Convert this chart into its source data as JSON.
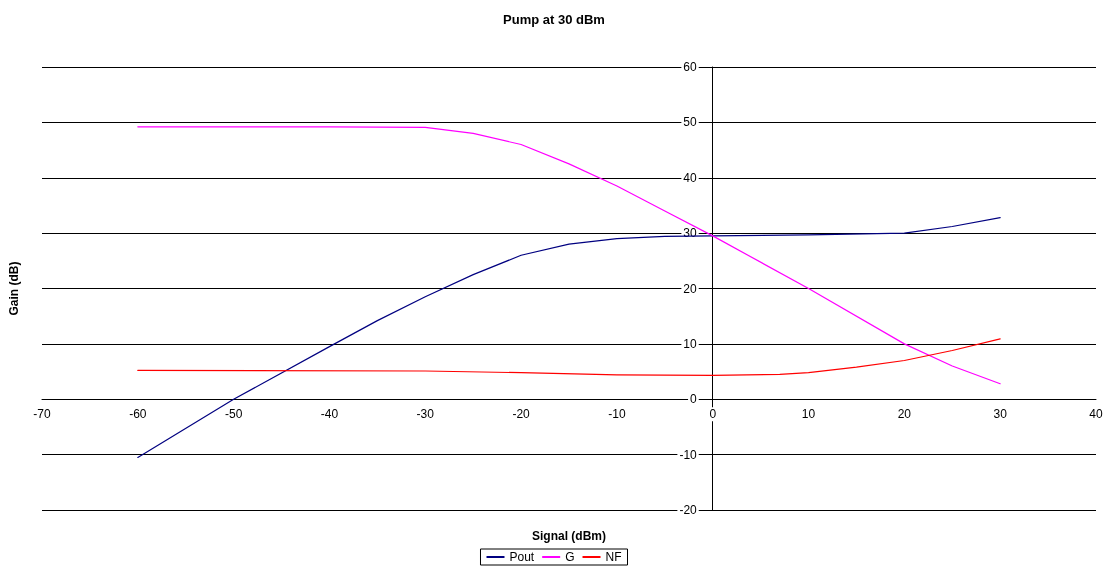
{
  "chart_data": {
    "type": "line",
    "title": "Pump at 30 dBm",
    "xlabel": "Signal (dBm)",
    "ylabel": "Gain (dB)",
    "xlim": [
      -70,
      40
    ],
    "xticks": [
      -70,
      -60,
      -50,
      -40,
      -30,
      -20,
      -10,
      0,
      10,
      20,
      30,
      40
    ],
    "ylim": [
      -20,
      60
    ],
    "yticks": [
      -20,
      -10,
      0,
      10,
      20,
      30,
      40,
      50,
      60
    ],
    "grid": "y",
    "legend": "bottom",
    "marker": "none",
    "line_style": "solid",
    "series": [
      {
        "name": "Pout",
        "color": "#000080",
        "x": [
          -60,
          -50,
          -40,
          -35,
          -30,
          -25,
          -20,
          -15,
          -10,
          -5,
          0,
          10,
          20,
          25,
          30
        ],
        "values": [
          -10.5,
          0,
          9.5,
          14.2,
          18.5,
          22.5,
          26,
          28,
          29,
          29.4,
          29.5,
          29.7,
          30,
          31.2,
          32.8
        ]
      },
      {
        "name": "G",
        "color": "#ff00ff",
        "x": [
          -60,
          -40,
          -30,
          -25,
          -20,
          -15,
          -10,
          -5,
          0,
          10,
          20,
          25,
          30
        ],
        "values": [
          49.2,
          49.2,
          49.1,
          48,
          46,
          42.5,
          38.5,
          34,
          29.5,
          20,
          10,
          6,
          2.8
        ]
      },
      {
        "name": "NF",
        "color": "#ff0000",
        "x": [
          -60,
          -30,
          -20,
          -10,
          0,
          7,
          10,
          15,
          20,
          25,
          30
        ],
        "values": [
          5.2,
          5.1,
          4.8,
          4.4,
          4.3,
          4.5,
          4.8,
          5.8,
          7,
          8.8,
          10.9
        ]
      }
    ]
  }
}
